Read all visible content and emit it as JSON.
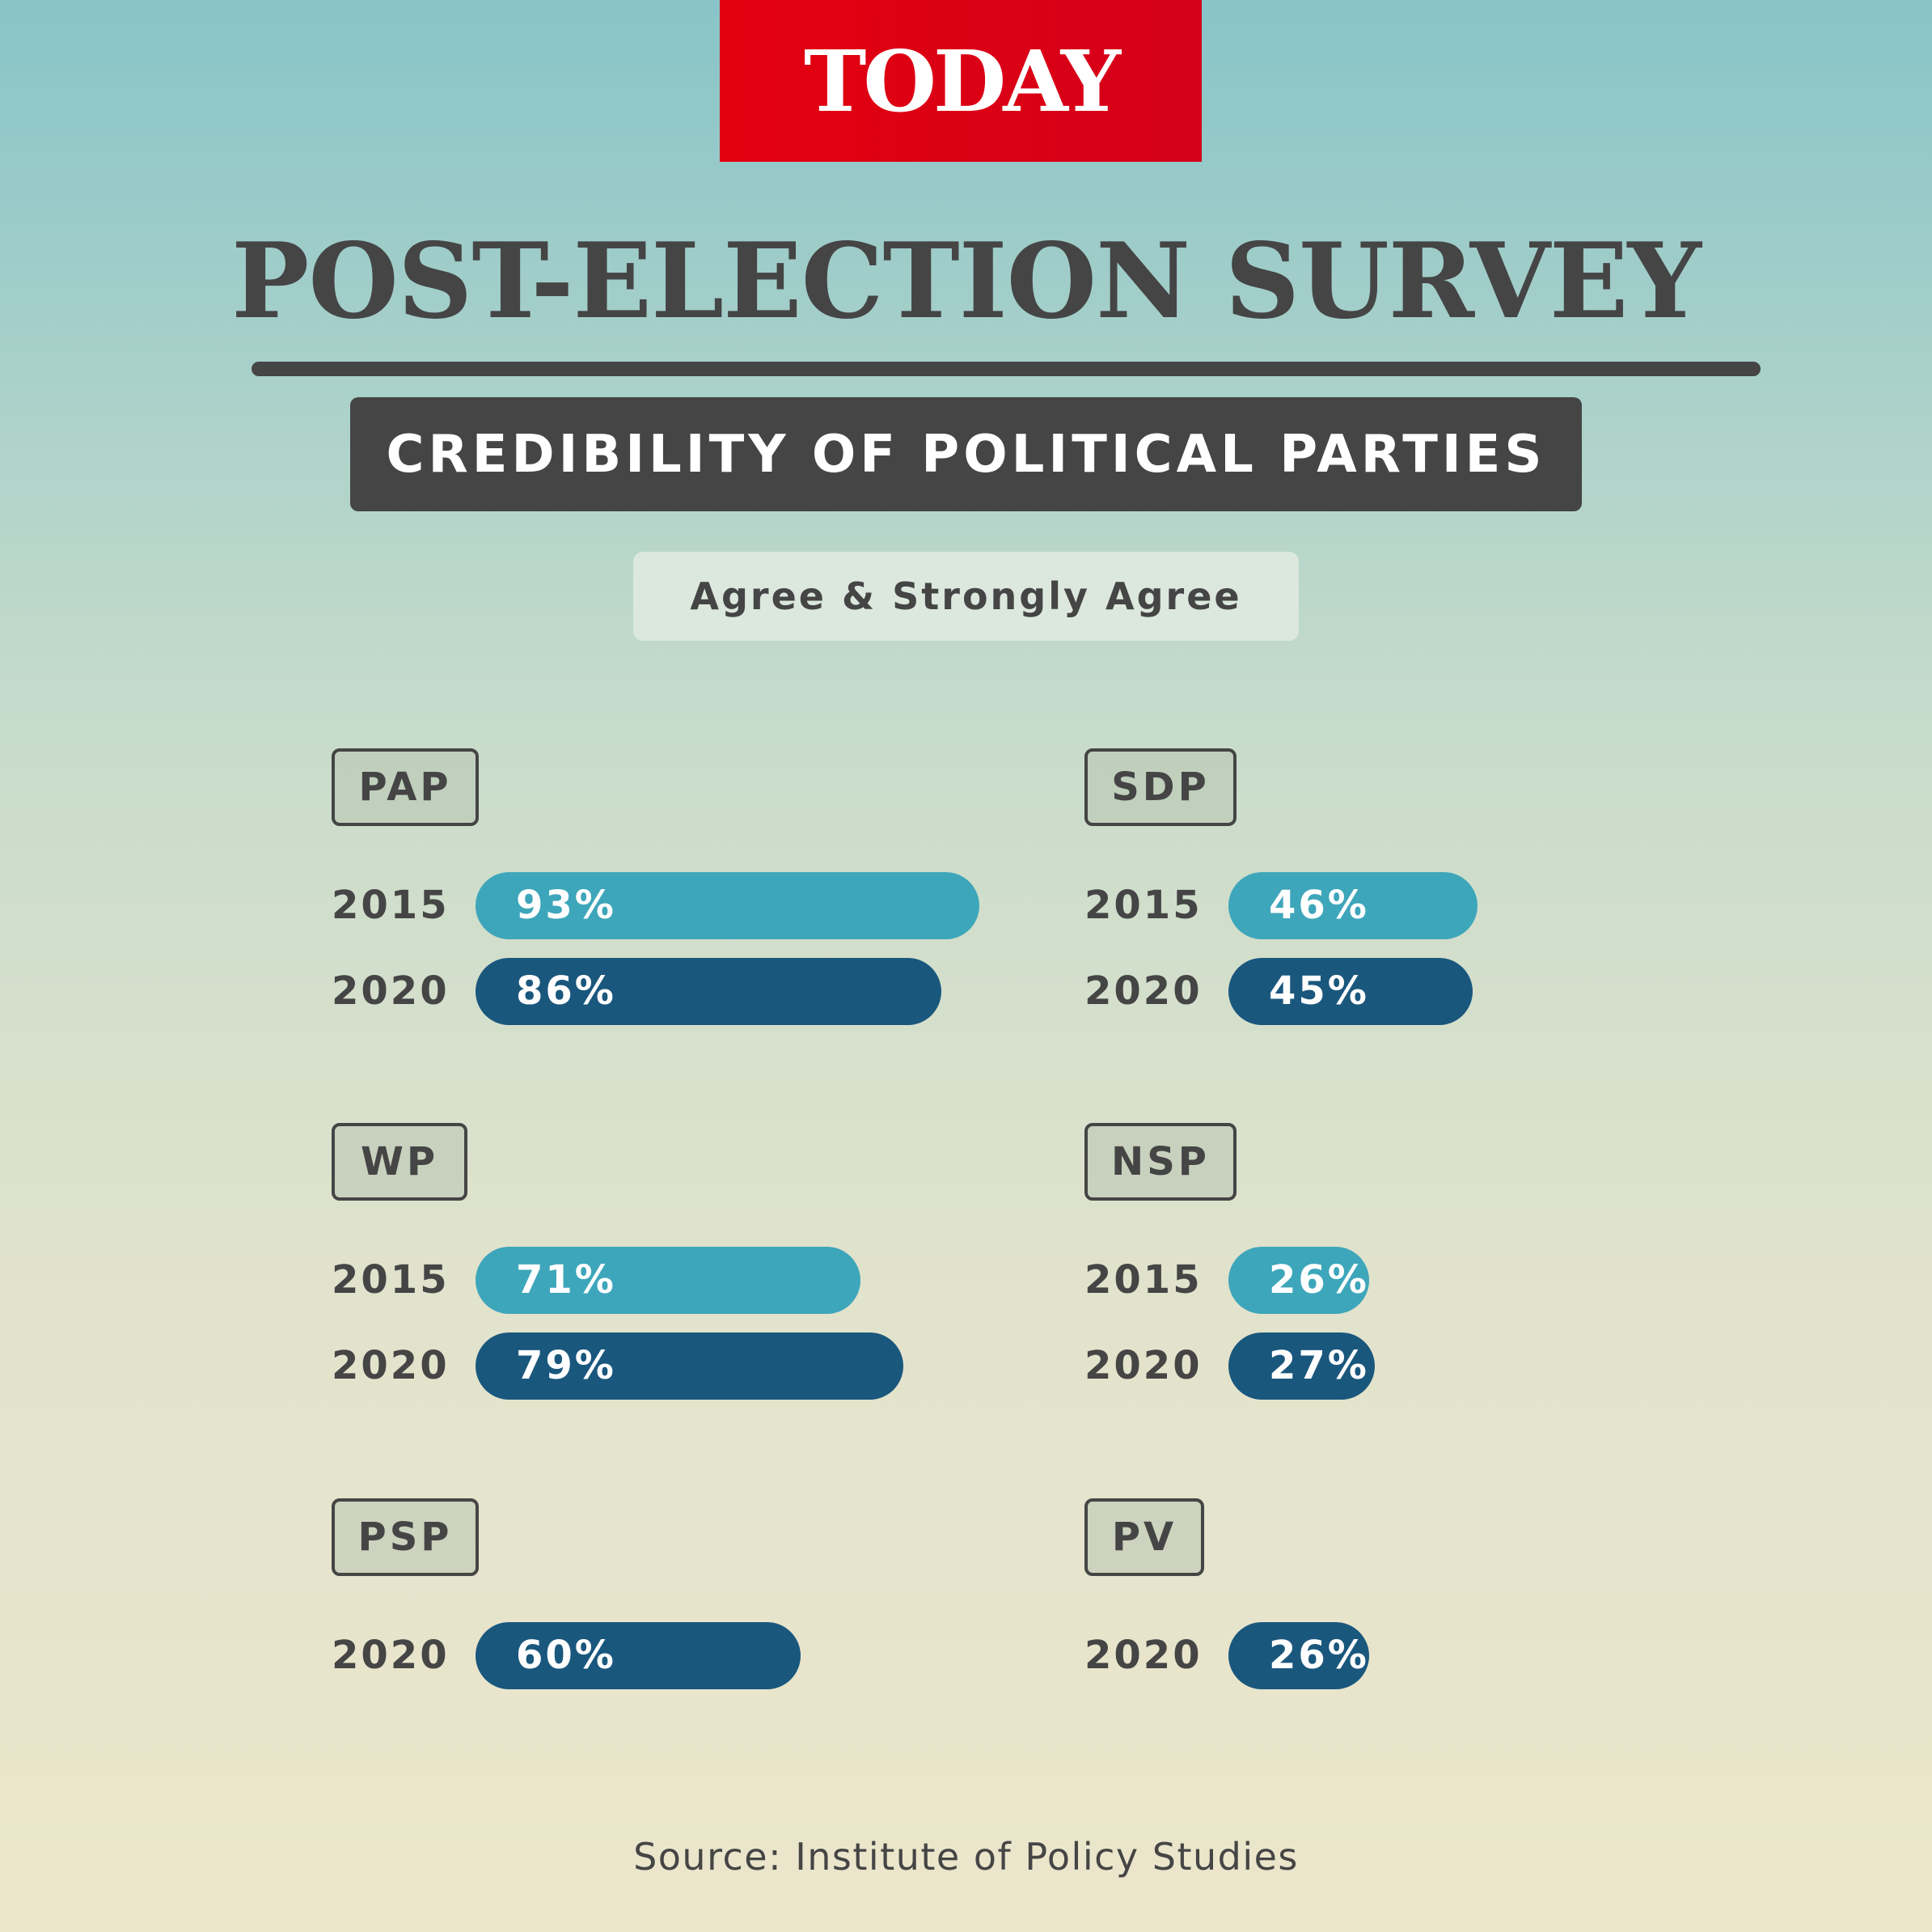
{
  "logo": "TODAY",
  "title": "POST-ELECTION SURVEY",
  "subtitle": "CREDIBILITY OF POLITICAL PARTIES",
  "legend": "Agree & Strongly Agree",
  "source": "Source: Institute of Policy Studies",
  "colors": {
    "y2015": "#3ea6ba",
    "y2020": "#1a577d",
    "logo": "#e3000f",
    "text": "#454545"
  },
  "chart_data": {
    "type": "bar",
    "title": "CREDIBILITY OF POLITICAL PARTIES",
    "ylabel": "Agree & Strongly Agree",
    "unit": "%",
    "vlim": [
      0,
      100
    ],
    "parties": [
      {
        "name": "PAP",
        "bars": [
          {
            "year": "2015",
            "value": 93,
            "label": "93%"
          },
          {
            "year": "2020",
            "value": 86,
            "label": "86%"
          }
        ]
      },
      {
        "name": "SDP",
        "bars": [
          {
            "year": "2015",
            "value": 46,
            "label": "46%"
          },
          {
            "year": "2020",
            "value": 45,
            "label": "45%"
          }
        ]
      },
      {
        "name": "WP",
        "bars": [
          {
            "year": "2015",
            "value": 71,
            "label": "71%"
          },
          {
            "year": "2020",
            "value": 79,
            "label": "79%"
          }
        ]
      },
      {
        "name": "NSP",
        "bars": [
          {
            "year": "2015",
            "value": 26,
            "label": "26%"
          },
          {
            "year": "2020",
            "value": 27,
            "label": "27%"
          }
        ]
      },
      {
        "name": "PSP",
        "bars": [
          {
            "year": "2020",
            "value": 60,
            "label": "60%"
          }
        ]
      },
      {
        "name": "PV",
        "bars": [
          {
            "year": "2020",
            "value": 26,
            "label": "26%"
          }
        ]
      }
    ]
  }
}
